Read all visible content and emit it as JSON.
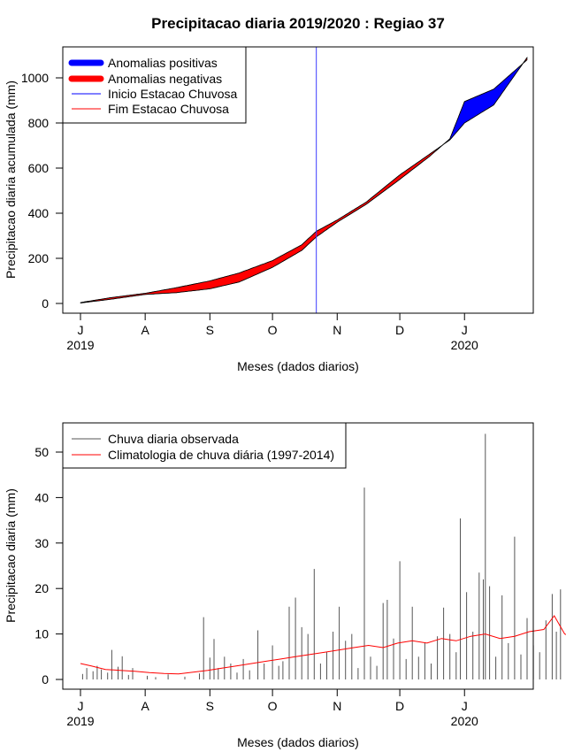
{
  "chart_data": [
    {
      "type": "area",
      "title": "Precipitacao diaria 2019/2020 : Regiao 37",
      "xlabel": "Meses (dados diarios)",
      "ylabel": "Precipitacao diaria acumulada (mm)",
      "ylim": [
        0,
        1100
      ],
      "yticks": [
        0,
        200,
        400,
        600,
        800,
        1000
      ],
      "x_start": "2019-07-01",
      "xlim": [
        "2019-07-01",
        "2020-02-28"
      ],
      "month_ticks": [
        {
          "date": "2019-07-01",
          "label": "J",
          "year": "2019"
        },
        {
          "date": "2019-08-01",
          "label": "A",
          "year": ""
        },
        {
          "date": "2019-09-01",
          "label": "S",
          "year": ""
        },
        {
          "date": "2019-10-01",
          "label": "O",
          "year": ""
        },
        {
          "date": "2019-11-01",
          "label": "N",
          "year": ""
        },
        {
          "date": "2019-12-01",
          "label": "D",
          "year": ""
        },
        {
          "date": "2020-01-01",
          "label": "J",
          "year": "2020"
        }
      ],
      "legend_position": "top-left",
      "legend": [
        {
          "label": "Anomalias positivas",
          "color": "#0000ff",
          "style": "thick"
        },
        {
          "label": "Anomalias negativas",
          "color": "#ff0000",
          "style": "thick"
        },
        {
          "label": "Inicio Estacao Chuvosa",
          "color": "#0000ff",
          "style": "thin"
        },
        {
          "label": "Fim Estacao Chuvosa",
          "color": "#ff0000",
          "style": "thin"
        }
      ],
      "season_start_date": "2019-10-22",
      "series": [
        {
          "name": "observed",
          "points": [
            [
              "2019-07-01",
              2
            ],
            [
              "2019-07-15",
              18
            ],
            [
              "2019-08-01",
              40
            ],
            [
              "2019-08-16",
              48
            ],
            [
              "2019-09-01",
              65
            ],
            [
              "2019-09-15",
              95
            ],
            [
              "2019-10-01",
              160
            ],
            [
              "2019-10-15",
              235
            ],
            [
              "2019-10-22",
              295
            ],
            [
              "2019-11-01",
              360
            ],
            [
              "2019-11-15",
              440
            ],
            [
              "2019-12-01",
              550
            ],
            [
              "2019-12-15",
              650
            ],
            [
              "2019-12-25",
              730
            ],
            [
              "2020-01-01",
              895
            ],
            [
              "2020-01-15",
              950
            ],
            [
              "2020-01-31",
              1080
            ]
          ]
        },
        {
          "name": "climatology",
          "points": [
            [
              "2019-07-01",
              4
            ],
            [
              "2019-07-15",
              25
            ],
            [
              "2019-08-01",
              45
            ],
            [
              "2019-08-16",
              70
            ],
            [
              "2019-09-01",
              100
            ],
            [
              "2019-09-15",
              135
            ],
            [
              "2019-10-01",
              190
            ],
            [
              "2019-10-15",
              260
            ],
            [
              "2019-10-22",
              320
            ],
            [
              "2019-11-01",
              370
            ],
            [
              "2019-11-15",
              450
            ],
            [
              "2019-12-01",
              570
            ],
            [
              "2019-12-15",
              660
            ],
            [
              "2019-12-25",
              725
            ],
            [
              "2020-01-01",
              800
            ],
            [
              "2020-01-15",
              880
            ],
            [
              "2020-01-31",
              1090
            ]
          ]
        }
      ]
    },
    {
      "type": "bar",
      "xlabel": "Meses (dados diarios)",
      "ylabel": "Precipitacao diaria (mm)",
      "ylim": [
        0,
        55
      ],
      "yticks": [
        0,
        10,
        20,
        30,
        40,
        50
      ],
      "x_start": "2019-07-01",
      "xlim": [
        "2019-07-01",
        "2020-02-28"
      ],
      "month_ticks": [
        {
          "date": "2019-07-01",
          "label": "J",
          "year": "2019"
        },
        {
          "date": "2019-08-01",
          "label": "A",
          "year": ""
        },
        {
          "date": "2019-09-01",
          "label": "S",
          "year": ""
        },
        {
          "date": "2019-10-01",
          "label": "O",
          "year": ""
        },
        {
          "date": "2019-11-01",
          "label": "N",
          "year": ""
        },
        {
          "date": "2019-12-01",
          "label": "D",
          "year": ""
        },
        {
          "date": "2020-01-01",
          "label": "J",
          "year": "2020"
        }
      ],
      "legend_position": "top-left",
      "legend": [
        {
          "label": "Chuva diaria observada",
          "color": "#555555"
        },
        {
          "label": "Climatologia de chuva diária (1997-2014)",
          "color": "#ff0000"
        }
      ],
      "daily_rain": [
        [
          "2019-07-02",
          1.2
        ],
        [
          "2019-07-04",
          2.5
        ],
        [
          "2019-07-07",
          1.8
        ],
        [
          "2019-07-09",
          3.0
        ],
        [
          "2019-07-11",
          2.2
        ],
        [
          "2019-07-14",
          1.5
        ],
        [
          "2019-07-16",
          6.5
        ],
        [
          "2019-07-19",
          2.8
        ],
        [
          "2019-07-21",
          5.1
        ],
        [
          "2019-07-24",
          1.0
        ],
        [
          "2019-07-26",
          2.5
        ],
        [
          "2019-08-02",
          0.8
        ],
        [
          "2019-08-06",
          0.5
        ],
        [
          "2019-08-12",
          1.1
        ],
        [
          "2019-08-20",
          0.6
        ],
        [
          "2019-08-27",
          1.3
        ],
        [
          "2019-08-29",
          13.7
        ],
        [
          "2019-09-01",
          4.8
        ],
        [
          "2019-09-03",
          8.9
        ],
        [
          "2019-09-05",
          2.5
        ],
        [
          "2019-09-08",
          5.0
        ],
        [
          "2019-09-11",
          3.5
        ],
        [
          "2019-09-14",
          1.5
        ],
        [
          "2019-09-17",
          4.5
        ],
        [
          "2019-09-20",
          2.0
        ],
        [
          "2019-09-24",
          10.8
        ],
        [
          "2019-09-27",
          3.5
        ],
        [
          "2019-10-01",
          7.5
        ],
        [
          "2019-10-04",
          3.0
        ],
        [
          "2019-10-06",
          4.0
        ],
        [
          "2019-10-09",
          16.0
        ],
        [
          "2019-10-12",
          18.0
        ],
        [
          "2019-10-15",
          11.5
        ],
        [
          "2019-10-18",
          10.0
        ],
        [
          "2019-10-21",
          24.3
        ],
        [
          "2019-10-24",
          3.5
        ],
        [
          "2019-10-27",
          6.0
        ],
        [
          "2019-10-30",
          10.5
        ],
        [
          "2019-11-02",
          16.0
        ],
        [
          "2019-11-05",
          8.5
        ],
        [
          "2019-11-08",
          10.0
        ],
        [
          "2019-11-11",
          2.5
        ],
        [
          "2019-11-14",
          42.2
        ],
        [
          "2019-11-17",
          5.0
        ],
        [
          "2019-11-20",
          3.0
        ],
        [
          "2019-11-23",
          16.8
        ],
        [
          "2019-11-25",
          17.5
        ],
        [
          "2019-11-28",
          9.0
        ],
        [
          "2019-12-01",
          26.0
        ],
        [
          "2019-12-04",
          4.5
        ],
        [
          "2019-12-07",
          16.0
        ],
        [
          "2019-12-10",
          5.0
        ],
        [
          "2019-12-13",
          8.0
        ],
        [
          "2019-12-16",
          3.5
        ],
        [
          "2019-12-19",
          9.5
        ],
        [
          "2019-12-22",
          15.8
        ],
        [
          "2019-12-25",
          10.0
        ],
        [
          "2019-12-28",
          6.0
        ],
        [
          "2019-12-30",
          35.4
        ],
        [
          "2020-01-02",
          19.2
        ],
        [
          "2020-01-05",
          10.5
        ],
        [
          "2020-01-08",
          23.5
        ],
        [
          "2020-01-10",
          22.0
        ],
        [
          "2020-01-11",
          54.0
        ],
        [
          "2020-01-13",
          20.5
        ],
        [
          "2020-01-16",
          5.0
        ],
        [
          "2020-01-19",
          18.5
        ],
        [
          "2020-01-22",
          8.0
        ],
        [
          "2020-01-25",
          31.4
        ],
        [
          "2020-01-28",
          5.5
        ],
        [
          "2020-01-31",
          13.5
        ],
        [
          "2020-02-03",
          7.5
        ],
        [
          "2020-02-06",
          6.0
        ],
        [
          "2020-02-09",
          13.0
        ],
        [
          "2020-02-12",
          18.8
        ],
        [
          "2020-02-14",
          10.5
        ],
        [
          "2020-02-16",
          19.8
        ],
        [
          "2020-02-19",
          13.5
        ],
        [
          "2020-02-21",
          3.5
        ],
        [
          "2020-02-24",
          2.0
        ],
        [
          "2020-02-27",
          1.5
        ]
      ],
      "climatology": [
        [
          "2019-07-01",
          3.5
        ],
        [
          "2019-07-06",
          3.0
        ],
        [
          "2019-07-13",
          2.2
        ],
        [
          "2019-07-20",
          2.0
        ],
        [
          "2019-07-27",
          1.8
        ],
        [
          "2019-08-03",
          1.5
        ],
        [
          "2019-08-10",
          1.3
        ],
        [
          "2019-08-17",
          1.2
        ],
        [
          "2019-08-24",
          1.6
        ],
        [
          "2019-08-31",
          2.0
        ],
        [
          "2019-09-07",
          2.5
        ],
        [
          "2019-09-14",
          3.0
        ],
        [
          "2019-09-21",
          3.5
        ],
        [
          "2019-09-28",
          4.0
        ],
        [
          "2019-10-05",
          4.5
        ],
        [
          "2019-10-12",
          5.0
        ],
        [
          "2019-10-19",
          5.5
        ],
        [
          "2019-10-26",
          6.0
        ],
        [
          "2019-11-02",
          6.5
        ],
        [
          "2019-11-09",
          7.0
        ],
        [
          "2019-11-16",
          7.5
        ],
        [
          "2019-11-23",
          7.0
        ],
        [
          "2019-11-30",
          8.0
        ],
        [
          "2019-12-07",
          8.5
        ],
        [
          "2019-12-14",
          8.0
        ],
        [
          "2019-12-21",
          9.0
        ],
        [
          "2019-12-28",
          8.5
        ],
        [
          "2020-01-04",
          9.5
        ],
        [
          "2020-01-11",
          10.0
        ],
        [
          "2020-01-18",
          9.0
        ],
        [
          "2020-01-25",
          9.5
        ],
        [
          "2020-02-01",
          10.5
        ],
        [
          "2020-02-08",
          11.0
        ],
        [
          "2020-02-13",
          14.0
        ],
        [
          "2020-02-18",
          10.0
        ],
        [
          "2020-02-23",
          9.0
        ],
        [
          "2020-02-28",
          9.5
        ]
      ]
    }
  ]
}
